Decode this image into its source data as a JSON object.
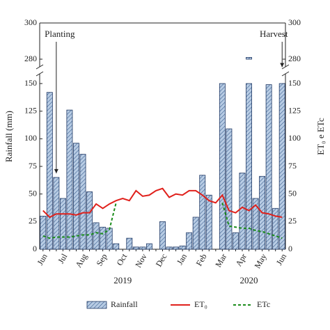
{
  "chart_data": {
    "type": "bar",
    "y_label": "Rainfall (mm)",
    "y2_label": "ET₀ e ETc",
    "categories": [
      "Jun",
      null,
      null,
      "Jul",
      null,
      null,
      "Aug",
      null,
      null,
      "Sep",
      null,
      null,
      "Oct",
      null,
      null,
      "Nov",
      null,
      null,
      "Dec",
      null,
      null,
      "Jan",
      null,
      null,
      "Feb",
      null,
      null,
      "Mar",
      null,
      null,
      "Apr",
      null,
      null,
      "May",
      null,
      null,
      "Jun"
    ],
    "years": [
      "2019",
      "2020"
    ],
    "series": [
      {
        "name": "Rainfall",
        "type": "bar",
        "color": "#b8cce4",
        "values": [
          30,
          142,
          65,
          46,
          126,
          96,
          86,
          52,
          24,
          20,
          19,
          5,
          0,
          10,
          2,
          2,
          5,
          0,
          25,
          2,
          2,
          3,
          15,
          29,
          67,
          49,
          0,
          152,
          109,
          15,
          69,
          281,
          46,
          66,
          149,
          37,
          161
        ]
      },
      {
        "name": "ET₀",
        "type": "line",
        "axis": "y2",
        "color": "#e0201b",
        "values": [
          35,
          29,
          32,
          32,
          32,
          31,
          33,
          33,
          41,
          37,
          41,
          44,
          46,
          44,
          53,
          48,
          49,
          53,
          55,
          47,
          50,
          49,
          53,
          53,
          49,
          44,
          42,
          49,
          35,
          33,
          38,
          35,
          40,
          33,
          32,
          30,
          29
        ]
      },
      {
        "name": "ETc",
        "type": "line",
        "axis": "y2",
        "dashed": true,
        "color": "#1a8c1a",
        "values": [
          12,
          10,
          11,
          11,
          11,
          12,
          13,
          13,
          15,
          14,
          18,
          42,
          null,
          null,
          null,
          null,
          null,
          null,
          null,
          null,
          null,
          null,
          null,
          null,
          null,
          null,
          null,
          42,
          21,
          20,
          19,
          19,
          17,
          16,
          14,
          12,
          10
        ]
      }
    ],
    "ylim": [
      0,
      300
    ],
    "axis_break": [
      150,
      280
    ],
    "yticks": [
      0,
      25,
      50,
      75,
      100,
      125,
      150,
      280,
      300
    ],
    "y2lim": [
      0,
      300
    ],
    "y2ticks": [
      0,
      25,
      50,
      75,
      100,
      125,
      150,
      280,
      300
    ],
    "annotations": [
      {
        "text": "Planting",
        "category": 2
      },
      {
        "text": "Harvest",
        "category": 36
      }
    ],
    "legend": "bottom"
  }
}
